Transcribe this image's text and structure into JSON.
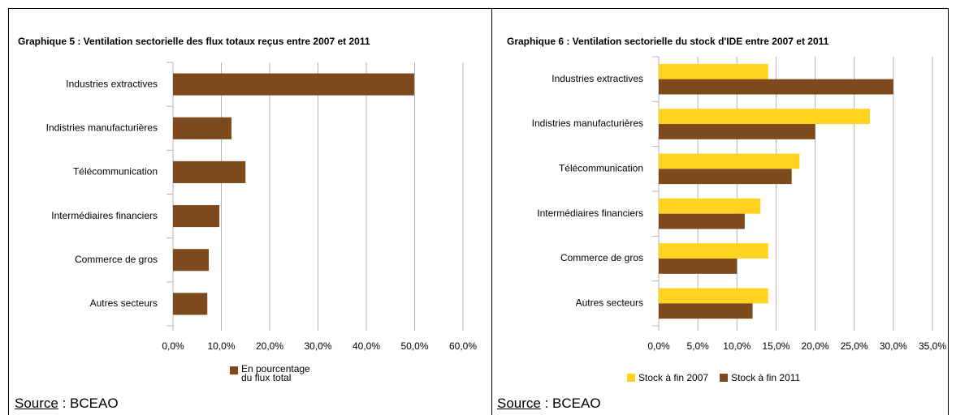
{
  "chart_data": [
    {
      "type": "bar",
      "orientation": "horizontal",
      "title": "Graphique 5 : Ventilation sectorielle des flux totaux reçus entre 2007 et 2011",
      "categories": [
        "Industries extractives",
        "Indistries manufacturières",
        "Télécommunication",
        "Intermédiaires financiers",
        "Commerce de gros",
        "Autres secteurs"
      ],
      "series": [
        {
          "name": "En pourcentage du flux total",
          "color": "#7e4a1d",
          "values": [
            49.9,
            12.1,
            15.0,
            9.6,
            7.4,
            7.1
          ]
        }
      ],
      "xlim": [
        0,
        60
      ],
      "xticks": [
        {
          "value": 0,
          "label": "0,0%"
        },
        {
          "value": 10,
          "label": "10,0%"
        },
        {
          "value": 20,
          "label": "20,0%"
        },
        {
          "value": 30,
          "label": "30,0%"
        },
        {
          "value": 40,
          "label": "40,0%"
        },
        {
          "value": 50,
          "label": "50,0%"
        },
        {
          "value": 60,
          "label": "60,0%"
        }
      ],
      "grid": true,
      "legend": "bottom",
      "source": {
        "label": "Source",
        "text": " : BCEAO"
      }
    },
    {
      "type": "bar",
      "orientation": "horizontal",
      "title": "Graphique 6 : Ventilation sectorielle du stock d'IDE entre 2007 et 2011",
      "categories": [
        "Industries extractives",
        "Indistries manufacturières",
        "Télécommunication",
        "Intermédiaires financiers",
        "Commerce de gros",
        "Autres secteurs"
      ],
      "series": [
        {
          "name": "Stock à fin 2007",
          "color": "#ffd320",
          "values": [
            14,
            27,
            18,
            13,
            14,
            14
          ]
        },
        {
          "name": "Stock à fin 2011",
          "color": "#7e4a1d",
          "values": [
            30,
            20,
            17,
            11,
            10,
            12
          ]
        }
      ],
      "xlim": [
        0,
        35
      ],
      "xticks": [
        {
          "value": 0,
          "label": "0,0%"
        },
        {
          "value": 5,
          "label": "5,0%"
        },
        {
          "value": 10,
          "label": "10,0%"
        },
        {
          "value": 15,
          "label": "15,0%"
        },
        {
          "value": 20,
          "label": "20,0%"
        },
        {
          "value": 25,
          "label": "25,0%"
        },
        {
          "value": 30,
          "label": "30,0%"
        },
        {
          "value": 35,
          "label": "35,0%"
        }
      ],
      "grid": true,
      "legend": "bottom",
      "source": {
        "label": "Source",
        "text": " : BCEAO"
      }
    }
  ]
}
